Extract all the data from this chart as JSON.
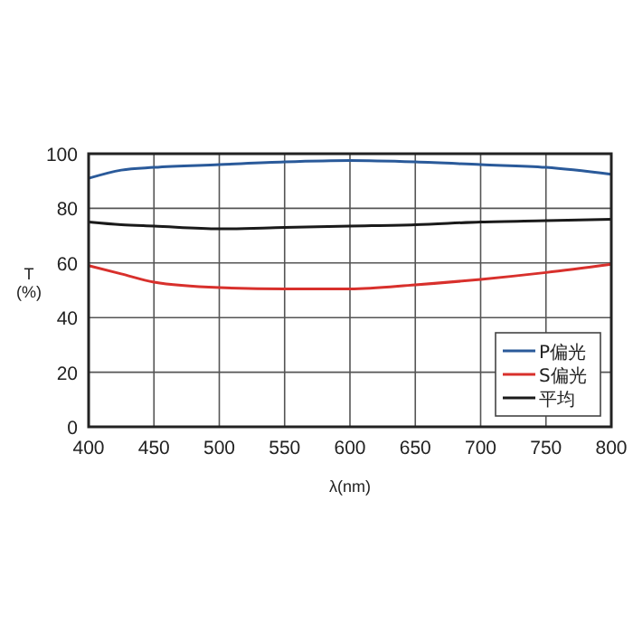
{
  "chart_data": {
    "type": "line",
    "xlabel": "λ(nm)",
    "ylabel": "T (%)",
    "x": [
      400,
      425,
      450,
      500,
      550,
      600,
      650,
      700,
      750,
      800
    ],
    "series": [
      {
        "name": "P偏光",
        "color": "#2a5a9a",
        "values": [
          91,
          94,
          95,
          96,
          97,
          97.5,
          97,
          96,
          95,
          92.5
        ]
      },
      {
        "name": "S偏光",
        "color": "#d8302c",
        "values": [
          59,
          56,
          53,
          51,
          50.5,
          50.5,
          52,
          54,
          56.5,
          59.5
        ]
      },
      {
        "name": "平均",
        "color": "#1a1a1a",
        "values": [
          75,
          74,
          73.5,
          72.5,
          73,
          73.5,
          74,
          75,
          75.5,
          76
        ]
      }
    ],
    "xlim": [
      400,
      800
    ],
    "xticks": [
      400,
      450,
      500,
      550,
      600,
      650,
      700,
      750,
      800
    ],
    "ylim": [
      0,
      100
    ],
    "yticks": [
      0,
      20,
      40,
      60,
      80,
      100
    ],
    "grid": true,
    "legend": "bottom right",
    "marker": "none",
    "line_style": "solid"
  }
}
